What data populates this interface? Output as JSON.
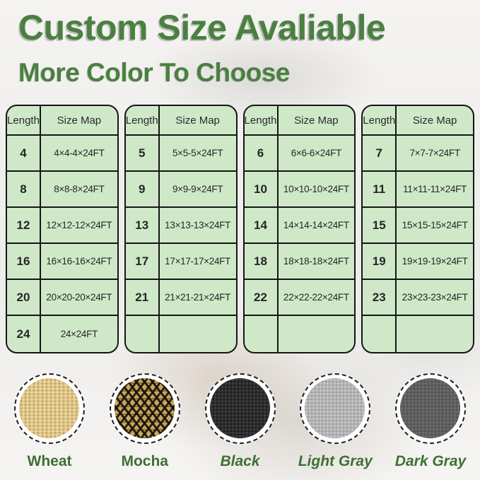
{
  "title": {
    "text": "Custom Size Avaliable"
  },
  "subtitle": {
    "text": "More Color To Choose"
  },
  "tables": [
    {
      "headers": [
        "Length",
        "Size Map"
      ],
      "rows": [
        [
          "4",
          "4×4-4×24FT"
        ],
        [
          "8",
          "8×8-8×24FT"
        ],
        [
          "12",
          "12×12-12×24FT"
        ],
        [
          "16",
          "16×16-16×24FT"
        ],
        [
          "20",
          "20×20-20×24FT"
        ],
        [
          "24",
          "24×24FT"
        ]
      ]
    },
    {
      "headers": [
        "Length",
        "Size Map"
      ],
      "rows": [
        [
          "5",
          "5×5-5×24FT"
        ],
        [
          "9",
          "9×9-9×24FT"
        ],
        [
          "13",
          "13×13-13×24FT"
        ],
        [
          "17",
          "17×17-17×24FT"
        ],
        [
          "21",
          "21×21-21×24FT"
        ],
        [
          "",
          ""
        ]
      ]
    },
    {
      "headers": [
        "Length",
        "Size Map"
      ],
      "rows": [
        [
          "6",
          "6×6-6×24FT"
        ],
        [
          "10",
          "10×10-10×24FT"
        ],
        [
          "14",
          "14×14-14×24FT"
        ],
        [
          "18",
          "18×18-18×24FT"
        ],
        [
          "22",
          "22×22-22×24FT"
        ],
        [
          "",
          ""
        ]
      ]
    },
    {
      "headers": [
        "Length",
        "Size Map"
      ],
      "rows": [
        [
          "7",
          "7×7-7×24FT"
        ],
        [
          "11",
          "11×11-11×24FT"
        ],
        [
          "15",
          "15×15-15×24FT"
        ],
        [
          "19",
          "19×19-19×24FT"
        ],
        [
          "23",
          "23×23-23×24FT"
        ],
        [
          "",
          ""
        ]
      ]
    }
  ],
  "swatches": [
    {
      "label": "Wheat",
      "texture": "wheat",
      "italic": false,
      "base_color": "#dfc88e"
    },
    {
      "label": "Mocha",
      "texture": "mocha",
      "italic": false,
      "base_color": "#c9a659"
    },
    {
      "label": "Black",
      "texture": "black",
      "italic": true,
      "base_color": "#2d2d2d"
    },
    {
      "label": "Light Gray",
      "texture": "light-gray",
      "italic": true,
      "base_color": "#b4b4b4"
    },
    {
      "label": "Dark Gray",
      "texture": "dark-gray",
      "italic": true,
      "base_color": "#5f5f5f"
    }
  ],
  "colors": {
    "title_green": "#4a8040",
    "label_green": "#3e7034",
    "table_background": "#cfe9c8",
    "table_border": "#151515"
  }
}
